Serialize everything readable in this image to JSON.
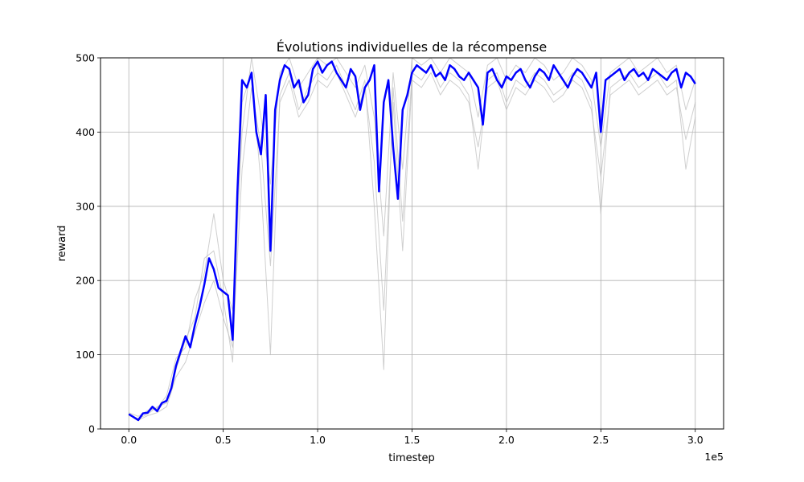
{
  "chart_data": {
    "type": "line",
    "title": "Évolutions individuelles de la récompense",
    "xlabel": "timestep",
    "ylabel": "reward",
    "x_offset_label": "1e5",
    "xlim": [
      -15000,
      315000
    ],
    "ylim": [
      0,
      500
    ],
    "x_ticks": [
      0,
      50000,
      100000,
      150000,
      200000,
      250000,
      300000
    ],
    "x_tick_labels": [
      "0.0",
      "0.5",
      "1.0",
      "1.5",
      "2.0",
      "2.5",
      "3.0"
    ],
    "y_ticks": [
      0,
      100,
      200,
      300,
      400,
      500
    ],
    "y_tick_labels": [
      "0",
      "100",
      "200",
      "300",
      "400",
      "500"
    ],
    "grid": true,
    "legend": false,
    "colors": {
      "mean": "#0000ff",
      "individual": "#bfbfbf"
    },
    "series": [
      {
        "role": "mean",
        "x": [
          0,
          2500,
          5000,
          7500,
          10000,
          12500,
          15000,
          17500,
          20000,
          22500,
          25000,
          27500,
          30000,
          32500,
          35000,
          37500,
          40000,
          42500,
          45000,
          47500,
          50000,
          52500,
          55000,
          57500,
          60000,
          62500,
          65000,
          67500,
          70000,
          72500,
          75000,
          77500,
          80000,
          82500,
          85000,
          87500,
          90000,
          92500,
          95000,
          97500,
          100000,
          102500,
          105000,
          107500,
          110000,
          112500,
          115000,
          117500,
          120000,
          122500,
          125000,
          127500,
          130000,
          132500,
          135000,
          137500,
          140000,
          142500,
          145000,
          147500,
          150000,
          152500,
          155000,
          157500,
          160000,
          162500,
          165000,
          167500,
          170000,
          172500,
          175000,
          177500,
          180000,
          182500,
          185000,
          187500,
          190000,
          192500,
          195000,
          197500,
          200000,
          202500,
          205000,
          207500,
          210000,
          212500,
          215000,
          217500,
          220000,
          222500,
          225000,
          227500,
          230000,
          232500,
          235000,
          237500,
          240000,
          242500,
          245000,
          247500,
          250000,
          252500,
          255000,
          257500,
          260000,
          262500,
          265000,
          267500,
          270000,
          272500,
          275000,
          277500,
          280000,
          282500,
          285000,
          287500,
          290000,
          292500,
          295000,
          297500,
          300000
        ],
        "y": [
          20,
          16,
          12,
          21,
          22,
          30,
          24,
          35,
          38,
          55,
          85,
          105,
          125,
          110,
          140,
          165,
          195,
          230,
          215,
          190,
          185,
          180,
          120,
          320,
          470,
          460,
          480,
          400,
          370,
          450,
          240,
          430,
          470,
          490,
          485,
          460,
          470,
          440,
          450,
          485,
          495,
          480,
          490,
          495,
          480,
          470,
          460,
          485,
          475,
          430,
          460,
          470,
          490,
          320,
          440,
          470,
          380,
          310,
          430,
          450,
          480,
          490,
          485,
          480,
          490,
          475,
          480,
          470,
          490,
          485,
          475,
          470,
          480,
          470,
          460,
          410,
          480,
          485,
          470,
          460,
          475,
          470,
          480,
          485,
          470,
          460,
          475,
          485,
          480,
          470,
          490,
          480,
          470,
          460,
          475,
          485,
          480,
          470,
          460,
          480,
          400,
          470,
          475,
          480,
          485,
          470,
          480,
          485,
          475,
          480,
          470,
          485,
          480,
          475,
          470,
          480,
          485,
          460,
          480,
          475,
          465
        ]
      },
      {
        "role": "individual",
        "x": [
          0,
          5000,
          10000,
          15000,
          20000,
          25000,
          30000,
          35000,
          40000,
          45000,
          50000,
          55000,
          60000,
          65000,
          70000,
          75000,
          80000,
          85000,
          90000,
          95000,
          100000,
          105000,
          110000,
          115000,
          120000,
          125000,
          130000,
          135000,
          140000,
          145000,
          150000,
          155000,
          160000,
          165000,
          170000,
          175000,
          180000,
          185000,
          190000,
          195000,
          200000,
          205000,
          210000,
          215000,
          220000,
          225000,
          230000,
          235000,
          240000,
          245000,
          250000,
          255000,
          260000,
          265000,
          270000,
          275000,
          280000,
          285000,
          290000,
          295000,
          300000
        ],
        "y": [
          18,
          14,
          20,
          30,
          35,
          80,
          120,
          150,
          230,
          240,
          175,
          90,
          440,
          480,
          330,
          100,
          450,
          480,
          430,
          460,
          480,
          470,
          490,
          460,
          430,
          470,
          300,
          80,
          460,
          280,
          480,
          470,
          490,
          460,
          480,
          470,
          450,
          350,
          470,
          480,
          440,
          470,
          460,
          480,
          470,
          450,
          460,
          480,
          470,
          440,
          290,
          460,
          470,
          480,
          460,
          470,
          480,
          460,
          470,
          350,
          420
        ]
      },
      {
        "role": "individual",
        "x": [
          0,
          5000,
          10000,
          15000,
          20000,
          25000,
          30000,
          35000,
          40000,
          45000,
          50000,
          55000,
          60000,
          65000,
          70000,
          75000,
          80000,
          85000,
          90000,
          95000,
          100000,
          105000,
          110000,
          115000,
          120000,
          125000,
          130000,
          135000,
          140000,
          145000,
          150000,
          155000,
          160000,
          165000,
          170000,
          175000,
          180000,
          185000,
          190000,
          195000,
          200000,
          205000,
          210000,
          215000,
          220000,
          225000,
          230000,
          235000,
          240000,
          245000,
          250000,
          255000,
          260000,
          265000,
          270000,
          275000,
          280000,
          285000,
          290000,
          295000,
          300000
        ],
        "y": [
          22,
          17,
          25,
          28,
          45,
          95,
          110,
          175,
          210,
          290,
          200,
          160,
          400,
          500,
          420,
          330,
          480,
          500,
          460,
          480,
          500,
          490,
          500,
          480,
          460,
          490,
          420,
          260,
          480,
          350,
          500,
          490,
          500,
          480,
          500,
          490,
          480,
          420,
          490,
          500,
          470,
          490,
          480,
          500,
          490,
          470,
          480,
          500,
          490,
          470,
          380,
          480,
          490,
          500,
          480,
          490,
          500,
          480,
          490,
          430,
          470
        ]
      },
      {
        "role": "individual",
        "x": [
          0,
          5000,
          10000,
          15000,
          20000,
          25000,
          30000,
          35000,
          40000,
          45000,
          50000,
          55000,
          60000,
          65000,
          70000,
          75000,
          80000,
          85000,
          90000,
          95000,
          100000,
          105000,
          110000,
          115000,
          120000,
          125000,
          130000,
          135000,
          140000,
          145000,
          150000,
          155000,
          160000,
          165000,
          170000,
          175000,
          180000,
          185000,
          190000,
          195000,
          200000,
          205000,
          210000,
          215000,
          220000,
          225000,
          230000,
          235000,
          240000,
          245000,
          250000,
          255000,
          260000,
          265000,
          270000,
          275000,
          280000,
          285000,
          290000,
          295000,
          300000
        ],
        "y": [
          20,
          12,
          18,
          22,
          30,
          70,
          90,
          130,
          170,
          200,
          150,
          110,
          350,
          460,
          380,
          220,
          440,
          470,
          420,
          440,
          470,
          460,
          480,
          450,
          420,
          460,
          360,
          160,
          440,
          240,
          470,
          460,
          480,
          450,
          470,
          460,
          440,
          380,
          460,
          470,
          430,
          460,
          450,
          470,
          460,
          440,
          450,
          470,
          460,
          430,
          340,
          450,
          460,
          470,
          450,
          460,
          470,
          450,
          460,
          390,
          440
        ]
      }
    ]
  }
}
